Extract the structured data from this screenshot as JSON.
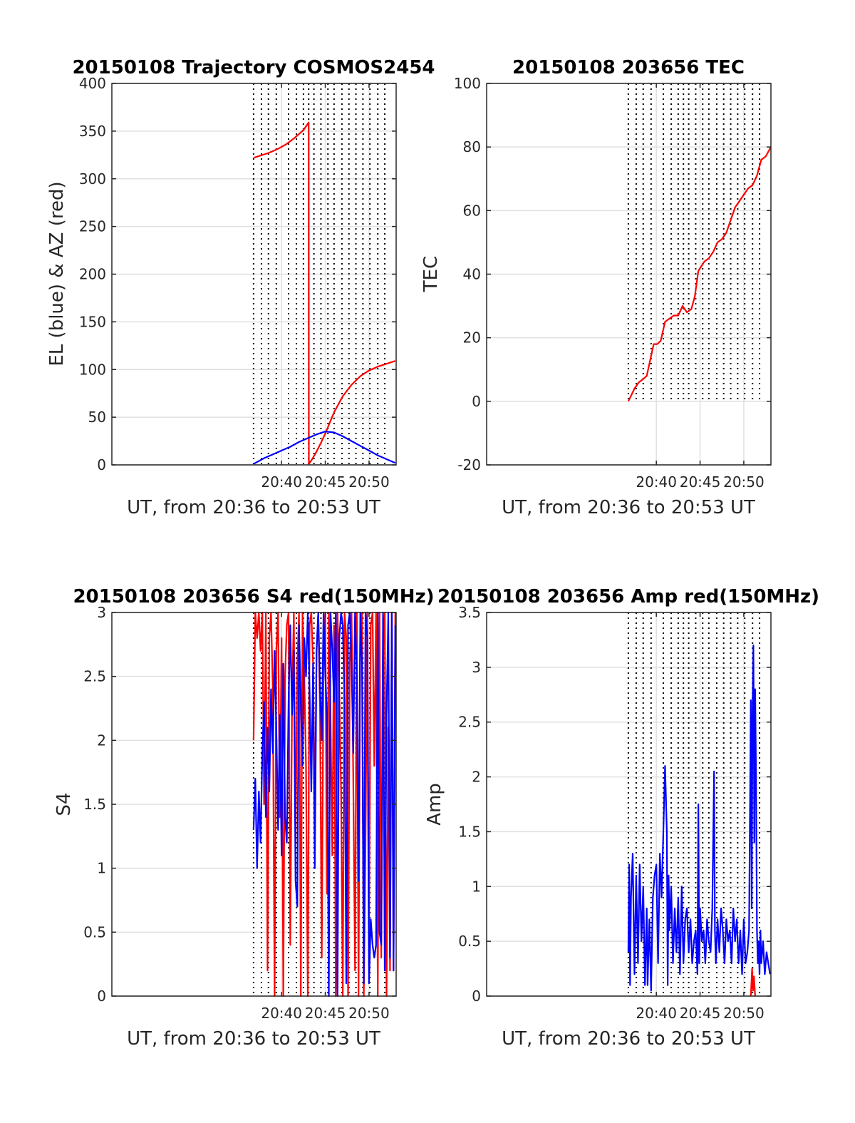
{
  "chart_data": [
    {
      "type": "line",
      "title": "20150108 Trajectory COSMOS2454",
      "xlabel": "UT, from 20:36 to 20:53 UT",
      "ylabel": "EL (blue) & AZ (red)",
      "xlim": [
        20.6,
        53.1
      ],
      "ylim": [
        0,
        400
      ],
      "x_ticks": [
        {
          "value": 40,
          "label": "20:40"
        },
        {
          "value": 45,
          "label": "20:45"
        },
        {
          "value": 50,
          "label": "20:50"
        }
      ],
      "y_ticks": [
        0,
        50,
        100,
        150,
        200,
        250,
        300,
        350,
        400
      ],
      "grid": true,
      "series": [
        {
          "color": "#ff0000",
          "x": [
            36.8,
            37.5,
            38.5,
            39.5,
            40.5,
            41.5,
            42.5,
            43.1,
            43.12,
            43.5,
            44.0,
            44.5,
            45.0,
            45.5,
            46.0,
            47.0,
            48.0,
            49.0,
            50.0,
            51.0,
            52.0,
            53.0
          ],
          "values": [
            322,
            324,
            327,
            331,
            336,
            343,
            351,
            359,
            1,
            6,
            14,
            23,
            33,
            44,
            55,
            72,
            84,
            93,
            99,
            103,
            106,
            109
          ]
        },
        {
          "color": "#0000ff",
          "x": [
            36.8,
            38,
            39,
            40,
            41,
            42,
            43,
            44,
            45,
            46,
            47,
            48,
            49,
            50,
            51,
            52,
            53
          ],
          "values": [
            1,
            7,
            11,
            15,
            19,
            24,
            28,
            32,
            35,
            34,
            30,
            25,
            20,
            15,
            10,
            6,
            2
          ]
        }
      ]
    },
    {
      "type": "line",
      "title": "20150108 203656 TEC",
      "xlabel": "UT, from 20:36 to 20:53 UT",
      "ylabel": "TEC",
      "xlim": [
        20.6,
        53.1
      ],
      "ylim": [
        -20,
        100
      ],
      "x_ticks": [
        {
          "value": 40,
          "label": "20:40"
        },
        {
          "value": 45,
          "label": "20:45"
        },
        {
          "value": 50,
          "label": "20:50"
        }
      ],
      "y_ticks": [
        -20,
        0,
        20,
        40,
        60,
        80,
        100
      ],
      "grid": true,
      "series": [
        {
          "color": "#ff0000",
          "x": [
            36.8,
            37.5,
            38,
            38.5,
            38.9,
            39.3,
            39.7,
            40.1,
            40.5,
            41.0,
            41.5,
            42.0,
            42.5,
            43.0,
            43.5,
            44.0,
            44.4,
            44.8,
            45.5,
            46.0,
            46.5,
            47.0,
            47.5,
            48.0,
            48.5,
            49.0,
            49.5,
            50.0,
            50.5,
            51.0,
            51.5,
            52.0,
            52.5,
            53.1
          ],
          "values": [
            0,
            4,
            6,
            7,
            8,
            13,
            18,
            18,
            19,
            25,
            26,
            27,
            27,
            30,
            28,
            29,
            33,
            41,
            44,
            45,
            47,
            50,
            51,
            53,
            57,
            61,
            63,
            65,
            67,
            68,
            71,
            76,
            77,
            80
          ]
        }
      ]
    },
    {
      "type": "line",
      "title": "20150108 203656 S4 red(150MHz)",
      "xlabel": "UT, from 20:36 to 20:53 UT",
      "ylabel": "S4",
      "xlim": [
        20.6,
        53.1
      ],
      "ylim": [
        0,
        3
      ],
      "x_ticks": [
        {
          "value": 40,
          "label": "20:40"
        },
        {
          "value": 45,
          "label": "20:45"
        },
        {
          "value": 50,
          "label": "20:50"
        }
      ],
      "y_ticks": [
        0,
        0.5,
        1,
        1.5,
        2,
        2.5,
        3
      ],
      "grid": true,
      "series": [
        {
          "color": "#ff0000",
          "x": [
            36.8,
            37.0,
            37.2,
            37.4,
            37.6,
            37.8,
            38.0,
            38.2,
            38.4,
            38.6,
            38.8,
            39.0,
            39.2,
            39.4,
            39.6,
            39.8,
            40.0,
            40.2,
            40.4,
            40.6,
            40.8,
            41.0,
            41.2,
            41.4,
            41.6,
            41.8,
            42.0,
            42.2,
            42.4,
            42.6,
            42.8,
            43.0,
            43.2,
            43.4,
            43.6,
            43.8,
            44.0,
            44.2,
            44.4,
            44.6,
            44.8,
            45.0,
            45.2,
            45.4,
            45.6,
            45.8,
            46.0,
            46.2,
            46.4,
            46.6,
            46.8,
            47.0,
            47.2,
            47.4,
            47.6,
            47.8,
            48.0,
            48.2,
            48.4,
            48.6,
            48.8,
            49.0,
            49.2,
            49.4,
            49.6,
            49.8,
            50.0,
            50.2,
            50.4,
            50.6,
            50.8,
            51.0,
            51.2,
            51.4,
            51.6,
            51.8,
            52.0,
            52.2,
            52.4,
            52.6,
            52.8,
            53.0
          ],
          "values": [
            2.0,
            3.0,
            2.8,
            3.0,
            2.7,
            3.0,
            1.5,
            3.0,
            0.2,
            2.8,
            3.0,
            2.4,
            0,
            2.7,
            3.0,
            1.4,
            2.8,
            0,
            2.5,
            2.9,
            3.0,
            0.4,
            2.3,
            3.0,
            1.2,
            2.6,
            3.0,
            0,
            3.0,
            2.5,
            1.8,
            0,
            2.9,
            3.0,
            2.6,
            1.4,
            2.7,
            3.0,
            2.2,
            0.3,
            2.7,
            3.0,
            0.8,
            3.0,
            2.2,
            1.1,
            2.9,
            0,
            3.0,
            2.4,
            1.6,
            0,
            3.0,
            2.8,
            0,
            2.6,
            3.0,
            1.7,
            0.2,
            3.0,
            0,
            2.9,
            3.0,
            0,
            1.2,
            3.0,
            0.4,
            2.9,
            3.0,
            1.8,
            3.0,
            0,
            3.0,
            0.3,
            2.7,
            3.0,
            0,
            2.1,
            0.2,
            3.0,
            0.2,
            3.0
          ]
        },
        {
          "color": "#0000ff",
          "x": [
            36.8,
            37.0,
            37.2,
            37.4,
            37.6,
            37.8,
            38.0,
            38.2,
            38.4,
            38.6,
            38.8,
            39.0,
            39.2,
            39.4,
            39.6,
            39.8,
            40.0,
            40.2,
            40.4,
            40.6,
            40.8,
            41.0,
            41.2,
            41.4,
            41.6,
            41.8,
            42.0,
            42.2,
            42.4,
            42.6,
            42.8,
            43.0,
            43.2,
            43.4,
            43.6,
            43.8,
            44.0,
            44.2,
            44.4,
            44.6,
            44.8,
            45.0,
            45.2,
            45.4,
            45.6,
            45.8,
            46.0,
            46.2,
            46.4,
            46.6,
            46.8,
            47.0,
            47.2,
            47.4,
            47.6,
            47.8,
            48.0,
            48.2,
            48.4,
            48.6,
            48.8,
            49.0,
            49.2,
            49.4,
            49.6,
            49.8,
            50.0,
            50.2,
            50.4,
            50.6,
            50.8,
            51.0,
            51.2,
            51.4,
            51.6,
            51.8,
            52.0,
            52.2,
            52.4,
            52.6,
            52.8,
            53.0
          ],
          "values": [
            1.3,
            1.7,
            1.0,
            1.6,
            1.2,
            1.9,
            2.3,
            1.4,
            2.1,
            1.6,
            2.4,
            1.9,
            2.7,
            2.1,
            1.3,
            2.2,
            1.1,
            2.6,
            1.4,
            1.2,
            2.3,
            2.9,
            2.2,
            2.7,
            0.9,
            0.7,
            2.9,
            2.3,
            1.8,
            2.8,
            2.5,
            3.0,
            2.4,
            1.6,
            2.6,
            1.0,
            2.7,
            3.0,
            2.4,
            2.0,
            3.0,
            2.5,
            2.2,
            0,
            3.0,
            2.7,
            2.3,
            3.0,
            0,
            2.8,
            3.0,
            2.9,
            2.3,
            0.1,
            2.9,
            3.0,
            2.6,
            1.9,
            3.0,
            2.5,
            0.9,
            3.0,
            2.6,
            0.1,
            3.0,
            2.8,
            0.1,
            0.6,
            0.4,
            0.3,
            0.4,
            3.0,
            0.5,
            0.4,
            3.0,
            0.2,
            2.2,
            3.0,
            0.3,
            3.0,
            0.2,
            2.9
          ]
        }
      ]
    },
    {
      "type": "line",
      "title": "20150108 203656 Amp red(150MHz)",
      "xlabel": "UT, from 20:36 to 20:53 UT",
      "ylabel": "Amp",
      "xlim": [
        20.6,
        53.1
      ],
      "ylim": [
        0,
        3.5
      ],
      "x_ticks": [
        {
          "value": 40,
          "label": "20:40"
        },
        {
          "value": 45,
          "label": "20:45"
        },
        {
          "value": 50,
          "label": "20:50"
        }
      ],
      "y_ticks": [
        0,
        0.5,
        1,
        1.5,
        2,
        2.5,
        3,
        3.5
      ],
      "grid": true,
      "series": [
        {
          "color": "#ff0000",
          "x": [
            50.8,
            50.95,
            51.05,
            51.15,
            51.3
          ],
          "values": [
            0,
            0.25,
            0.05,
            0.18,
            0
          ]
        },
        {
          "color": "#0000ff",
          "x": [
            36.8,
            36.9,
            37.0,
            37.1,
            37.3,
            37.5,
            37.7,
            37.9,
            38.1,
            38.3,
            38.5,
            38.7,
            38.9,
            39.0,
            39.2,
            39.4,
            39.6,
            39.8,
            40.0,
            40.2,
            40.4,
            40.6,
            40.8,
            41.0,
            41.1,
            41.2,
            41.3,
            41.4,
            41.5,
            41.7,
            41.9,
            42.1,
            42.3,
            42.5,
            42.7,
            42.9,
            43.1,
            43.3,
            43.5,
            43.7,
            43.9,
            44.1,
            44.3,
            44.5,
            44.7,
            44.8,
            44.9,
            45.0,
            45.2,
            45.4,
            45.6,
            45.8,
            46.0,
            46.2,
            46.4,
            46.6,
            46.7,
            46.8,
            46.9,
            47.0,
            47.2,
            47.4,
            47.6,
            47.8,
            48.0,
            48.2,
            48.4,
            48.6,
            48.8,
            49.0,
            49.2,
            49.4,
            49.6,
            49.8,
            50.0,
            50.2,
            50.4,
            50.6,
            50.8,
            50.9,
            51.0,
            51.1,
            51.2,
            51.3,
            51.4,
            51.5,
            51.6,
            51.7,
            51.8,
            51.9,
            52.0,
            52.2,
            52.4,
            52.6,
            52.8,
            53.0
          ],
          "values": [
            0.4,
            1.2,
            0.1,
            0.9,
            1.3,
            0.2,
            1.1,
            0.3,
            1.2,
            0.5,
            1.0,
            0.1,
            0.8,
            0.1,
            0.7,
            0.05,
            0.9,
            1.1,
            1.2,
            0.3,
            1.3,
            0.9,
            1.5,
            2.1,
            1.8,
            1.5,
            0.1,
            1.1,
            0.6,
            1.0,
            0.3,
            0.8,
            0.4,
            0.9,
            0.2,
            1.0,
            0.3,
            0.7,
            0.8,
            0.4,
            0.7,
            0.3,
            0.5,
            0.6,
            0.2,
            1.75,
            0.3,
            0.8,
            0.5,
            0.6,
            0.3,
            0.7,
            0.5,
            0.4,
            0.8,
            2.05,
            0.6,
            0.3,
            0.5,
            0.7,
            0.4,
            0.8,
            0.6,
            0.3,
            0.7,
            0.5,
            0.6,
            0.3,
            0.8,
            0.5,
            0.7,
            0.3,
            0.6,
            0.2,
            0.7,
            0.3,
            0.4,
            0.6,
            2.7,
            0.8,
            2.6,
            3.2,
            1.4,
            2.8,
            2.0,
            0.6,
            0.3,
            0.5,
            0.2,
            0.6,
            0.3,
            0.5,
            0.2,
            0.4,
            0.3,
            0.2
          ]
        }
      ]
    }
  ]
}
